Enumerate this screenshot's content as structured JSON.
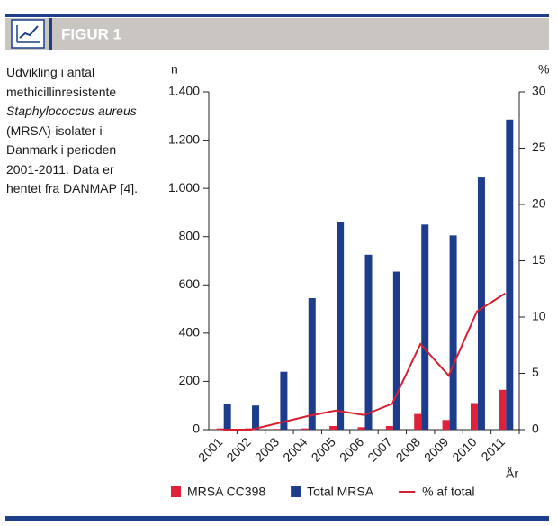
{
  "header": {
    "title": "FIGUR 1"
  },
  "caption_lines": [
    "Udvikling i antal",
    "methicillinresistente",
    "Staphylococcus aureus",
    "(MRSA)-isolater i",
    "Danmark i perioden",
    "2001-2011. Data er",
    "hentet fra DANMAP [4]."
  ],
  "chart_data": {
    "type": "bar",
    "y_label": "n",
    "y2_label": "%",
    "x_label": "År",
    "categories": [
      "2001",
      "2002",
      "2003",
      "2004",
      "2005",
      "2006",
      "2007",
      "2008",
      "2009",
      "2010",
      "2011"
    ],
    "series": [
      {
        "name": "MRSA CC398",
        "color": "#e0213b",
        "values": [
          5,
          5,
          3,
          5,
          15,
          10,
          15,
          65,
          40,
          110,
          165
        ]
      },
      {
        "name": "Total MRSA",
        "color": "#1d3c8c",
        "values": [
          105,
          100,
          240,
          545,
          860,
          725,
          655,
          850,
          805,
          1045,
          1285
        ]
      },
      {
        "name": "% af total",
        "color": "#d61f30",
        "type": "line",
        "axis": "y2",
        "values": [
          0,
          0,
          0.6,
          1.2,
          1.7,
          1.3,
          2.3,
          7.6,
          4.8,
          10.5,
          12.1
        ]
      }
    ],
    "ylim": [
      0,
      1400
    ],
    "yticks": [
      0,
      200,
      400,
      600,
      800,
      {
        "value": 1000,
        "label": "1.000"
      },
      {
        "value": 1200,
        "label": "1.200"
      },
      {
        "value": 1400,
        "label": "1.400"
      }
    ],
    "y2lim": [
      0,
      30
    ],
    "y2ticks": [
      0,
      5,
      10,
      15,
      20,
      25,
      30
    ],
    "legend": "bottom"
  }
}
